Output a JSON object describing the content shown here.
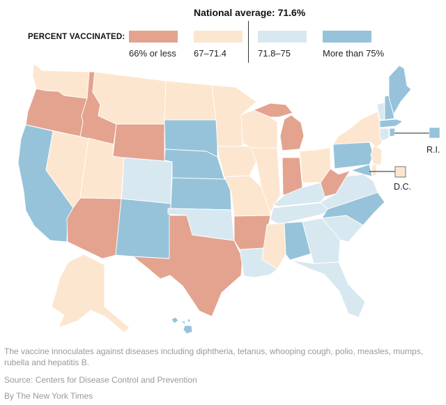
{
  "legend": {
    "title": "PERCENT VACCINATED:",
    "national_average": "National average: 71.6%",
    "bins": [
      {
        "label": "66% or less",
        "color": "#e3a38f"
      },
      {
        "label": "67–71.4",
        "color": "#fde6cf"
      },
      {
        "label": "71.8–75",
        "color": "#d8e8f0"
      },
      {
        "label": "More than 75%",
        "color": "#96c3da"
      }
    ]
  },
  "map_data": {
    "callouts": {
      "ri": {
        "label": "R.I.",
        "bin": 3
      },
      "dc": {
        "label": "D.C.",
        "bin": 1
      }
    }
  },
  "footer": {
    "notes": "The vaccine innoculates against diseases including diphtheria, tetanus, whooping cough, polio, measles, mumps, rubella and hepatitis B.",
    "source": "Source: Centers for Disease Control and Prevention",
    "credit": "By The New York Times"
  }
}
